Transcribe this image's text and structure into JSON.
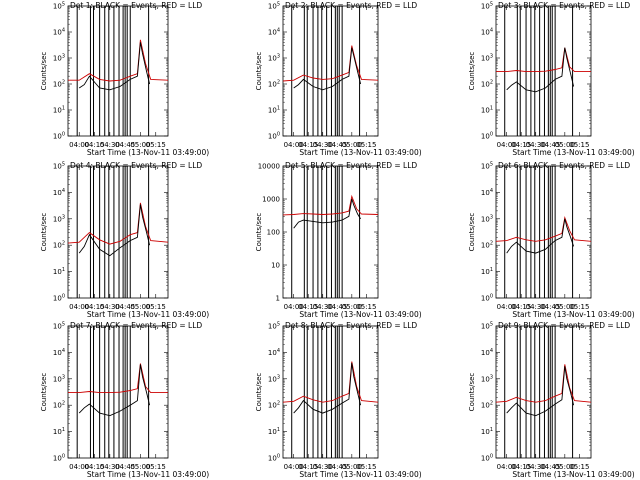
{
  "chart_data": [
    {
      "type": "line",
      "title": "Det 1: BLACK = Events, RED = LLD",
      "xlabel": "Start Time (13-Nov-11 03:49:00)",
      "ylabel": "Counts/sec",
      "scale": "log",
      "ylim": [
        1,
        100000
      ],
      "ytick_labels": [
        "10^0",
        "10^1",
        "10^2",
        "10^3",
        "10^4",
        "10^5"
      ],
      "xlim": [
        "03:49",
        "05:27"
      ],
      "xtick_labels": [
        "04:00",
        "04:15",
        "04:30",
        "04:45",
        "05:00",
        "05:15"
      ],
      "series": [
        {
          "color": "#000000",
          "x": [
            "04:00",
            "04:05",
            "04:10",
            "04:20",
            "04:30",
            "04:40",
            "04:50",
            "04:57",
            "05:00",
            "05:02",
            "05:06",
            "05:09"
          ],
          "values": [
            70,
            95,
            200,
            70,
            60,
            80,
            150,
            200,
            4000,
            1500,
            300,
            100
          ]
        },
        {
          "color": "#cc0000",
          "x": [
            "03:49",
            "04:00",
            "04:10",
            "04:20",
            "04:30",
            "04:40",
            "04:50",
            "04:57",
            "05:00",
            "05:05",
            "05:10",
            "05:27"
          ],
          "values": [
            140,
            140,
            250,
            150,
            130,
            140,
            200,
            250,
            5000,
            600,
            150,
            140
          ]
        }
      ]
    },
    {
      "type": "line",
      "title": "Det 2: BLACK = Events, RED = LLD",
      "xlabel": "Start Time (13-Nov-11 03:49:00)",
      "ylabel": "Counts/sec",
      "scale": "log",
      "ylim": [
        1,
        100000
      ],
      "ytick_labels": [
        "10^0",
        "10^1",
        "10^2",
        "10^3",
        "10^4",
        "10^5"
      ],
      "xlim": [
        "03:49",
        "05:27"
      ],
      "xtick_labels": [
        "04:00",
        "04:15",
        "04:30",
        "04:45",
        "05:00",
        "05:15"
      ],
      "series": [
        {
          "color": "#000000",
          "x": [
            "04:00",
            "04:05",
            "04:10",
            "04:20",
            "04:30",
            "04:40",
            "04:50",
            "04:57",
            "05:00",
            "05:02",
            "05:06",
            "05:09"
          ],
          "values": [
            70,
            95,
            150,
            80,
            60,
            80,
            150,
            200,
            2500,
            1200,
            300,
            100
          ]
        },
        {
          "color": "#cc0000",
          "x": [
            "03:49",
            "04:00",
            "04:10",
            "04:20",
            "04:30",
            "04:40",
            "04:50",
            "04:57",
            "05:00",
            "05:05",
            "05:10",
            "05:27"
          ],
          "values": [
            130,
            140,
            220,
            170,
            150,
            160,
            220,
            280,
            3000,
            500,
            150,
            140
          ]
        }
      ]
    },
    {
      "type": "line",
      "title": "Det 3: BLACK = Events, RED = LLD",
      "xlabel": "Start Time (13-Nov-11 03:49:00)",
      "ylabel": "Counts/sec",
      "scale": "log",
      "ylim": [
        1,
        100000
      ],
      "ytick_labels": [
        "10^0",
        "10^1",
        "10^2",
        "10^3",
        "10^4",
        "10^5"
      ],
      "xlim": [
        "03:49",
        "05:27"
      ],
      "xtick_labels": [
        "04:00",
        "04:15",
        "04:30",
        "04:45",
        "05:00",
        "05:15"
      ],
      "series": [
        {
          "color": "#000000",
          "x": [
            "04:00",
            "04:05",
            "04:10",
            "04:20",
            "04:30",
            "04:40",
            "04:50",
            "04:57",
            "05:00",
            "05:02",
            "05:06",
            "05:09"
          ],
          "values": [
            60,
            90,
            120,
            60,
            50,
            70,
            150,
            200,
            2500,
            1000,
            250,
            80
          ]
        },
        {
          "color": "#cc0000",
          "x": [
            "03:49",
            "04:00",
            "04:10",
            "04:20",
            "04:30",
            "04:40",
            "04:50",
            "04:57",
            "05:00",
            "05:05",
            "05:10",
            "05:27"
          ],
          "values": [
            300,
            300,
            330,
            300,
            300,
            310,
            360,
            420,
            2500,
            450,
            300,
            300
          ]
        }
      ]
    },
    {
      "type": "line",
      "title": "Det 4: BLACK = Events, RED = LLD",
      "xlabel": "Start Time (13-Nov-11 03:49:00)",
      "ylabel": "Counts/sec",
      "scale": "log",
      "ylim": [
        1,
        100000
      ],
      "ytick_labels": [
        "10^0",
        "10^1",
        "10^2",
        "10^3",
        "10^4",
        "10^5"
      ],
      "xlim": [
        "03:49",
        "05:27"
      ],
      "xtick_labels": [
        "04:00",
        "04:15",
        "04:30",
        "04:45",
        "05:00",
        "05:15"
      ],
      "series": [
        {
          "color": "#000000",
          "x": [
            "04:00",
            "04:05",
            "04:10",
            "04:20",
            "04:30",
            "04:40",
            "04:50",
            "04:57",
            "05:00",
            "05:02",
            "05:06",
            "05:09"
          ],
          "values": [
            50,
            90,
            250,
            70,
            40,
            80,
            150,
            200,
            3500,
            1200,
            300,
            100
          ]
        },
        {
          "color": "#cc0000",
          "x": [
            "03:49",
            "04:00",
            "04:10",
            "04:20",
            "04:30",
            "04:40",
            "04:50",
            "04:57",
            "05:00",
            "05:05",
            "05:10",
            "05:27"
          ],
          "values": [
            120,
            130,
            300,
            160,
            110,
            140,
            250,
            300,
            4000,
            500,
            150,
            130
          ]
        }
      ]
    },
    {
      "type": "line",
      "title": "Det 5: BLACK = Events, RED = LLD",
      "xlabel": "Start Time (13-Nov-11 03:49:00)",
      "ylabel": "Counts/sec",
      "scale": "log",
      "ylim": [
        1,
        10000
      ],
      "ytick_labels": [
        "1",
        "10",
        "100",
        "1000",
        "10000"
      ],
      "xlim": [
        "03:49",
        "05:27"
      ],
      "xtick_labels": [
        "04:00",
        "04:15",
        "04:30",
        "04:45",
        "05:00",
        "05:15"
      ],
      "series": [
        {
          "color": "#000000",
          "x": [
            "04:00",
            "04:05",
            "04:10",
            "04:20",
            "04:30",
            "04:40",
            "04:50",
            "04:57",
            "05:00",
            "05:02",
            "05:06",
            "05:09"
          ],
          "values": [
            130,
            200,
            230,
            210,
            190,
            200,
            230,
            300,
            1000,
            650,
            350,
            250
          ]
        },
        {
          "color": "#cc0000",
          "x": [
            "03:49",
            "04:00",
            "04:10",
            "04:20",
            "04:30",
            "04:40",
            "04:50",
            "04:57",
            "05:00",
            "05:05",
            "05:10",
            "05:27"
          ],
          "values": [
            330,
            340,
            360,
            350,
            340,
            350,
            380,
            430,
            1200,
            500,
            350,
            340
          ]
        }
      ]
    },
    {
      "type": "line",
      "title": "Det 6: BLACK = Events, RED = LLD",
      "xlabel": "Start Time (13-Nov-11 03:49:00)",
      "ylabel": "Counts/sec",
      "scale": "log",
      "ylim": [
        1,
        100000
      ],
      "ytick_labels": [
        "10^0",
        "10^1",
        "10^2",
        "10^3",
        "10^4",
        "10^5"
      ],
      "xlim": [
        "03:49",
        "05:27"
      ],
      "xtick_labels": [
        "04:00",
        "04:15",
        "04:30",
        "04:45",
        "05:00",
        "05:15"
      ],
      "series": [
        {
          "color": "#000000",
          "x": [
            "04:00",
            "04:05",
            "04:10",
            "04:20",
            "04:30",
            "04:40",
            "04:50",
            "04:57",
            "05:00",
            "05:02",
            "05:06",
            "05:09"
          ],
          "values": [
            50,
            90,
            130,
            60,
            50,
            70,
            150,
            200,
            1000,
            500,
            200,
            90
          ]
        },
        {
          "color": "#cc0000",
          "x": [
            "03:49",
            "04:00",
            "04:10",
            "04:20",
            "04:30",
            "04:40",
            "04:50",
            "04:57",
            "05:00",
            "05:05",
            "05:10",
            "05:27"
          ],
          "values": [
            140,
            150,
            200,
            160,
            140,
            160,
            220,
            280,
            1100,
            350,
            160,
            140
          ]
        }
      ]
    },
    {
      "type": "line",
      "title": "Det 7: BLACK = Events, RED = LLD",
      "xlabel": "Start Time (13-Nov-11 03:49:00)",
      "ylabel": "Counts/sec",
      "scale": "log",
      "ylim": [
        1,
        100000
      ],
      "ytick_labels": [
        "10^0",
        "10^1",
        "10^2",
        "10^3",
        "10^4",
        "10^5"
      ],
      "xlim": [
        "03:49",
        "05:27"
      ],
      "xtick_labels": [
        "04:00",
        "04:15",
        "04:30",
        "04:45",
        "05:00",
        "05:15"
      ],
      "series": [
        {
          "color": "#000000",
          "x": [
            "04:00",
            "04:05",
            "04:10",
            "04:20",
            "04:30",
            "04:40",
            "04:50",
            "04:57",
            "05:00",
            "05:02",
            "05:06",
            "05:09"
          ],
          "values": [
            50,
            80,
            110,
            50,
            40,
            60,
            100,
            150,
            3500,
            1200,
            300,
            100
          ]
        },
        {
          "color": "#cc0000",
          "x": [
            "03:49",
            "04:00",
            "04:10",
            "04:20",
            "04:30",
            "04:40",
            "04:50",
            "04:57",
            "05:00",
            "05:05",
            "05:10",
            "05:27"
          ],
          "values": [
            300,
            300,
            330,
            300,
            300,
            310,
            360,
            420,
            3800,
            500,
            300,
            300
          ]
        }
      ]
    },
    {
      "type": "line",
      "title": "Det 8: BLACK = Events, RED = LLD",
      "xlabel": "Start Time (13-Nov-11 03:49:00)",
      "ylabel": "Counts/sec",
      "scale": "log",
      "ylim": [
        1,
        100000
      ],
      "ytick_labels": [
        "10^0",
        "10^1",
        "10^2",
        "10^3",
        "10^4",
        "10^5"
      ],
      "xlim": [
        "03:49",
        "05:27"
      ],
      "xtick_labels": [
        "04:00",
        "04:15",
        "04:30",
        "04:45",
        "05:00",
        "05:15"
      ],
      "series": [
        {
          "color": "#000000",
          "x": [
            "04:00",
            "04:05",
            "04:10",
            "04:20",
            "04:30",
            "04:40",
            "04:50",
            "04:57",
            "05:00",
            "05:02",
            "05:06",
            "05:09"
          ],
          "values": [
            50,
            80,
            150,
            70,
            50,
            70,
            120,
            170,
            4000,
            1200,
            300,
            100
          ]
        },
        {
          "color": "#cc0000",
          "x": [
            "03:49",
            "04:00",
            "04:10",
            "04:20",
            "04:30",
            "04:40",
            "04:50",
            "04:57",
            "05:00",
            "05:05",
            "05:10",
            "05:27"
          ],
          "values": [
            130,
            140,
            220,
            160,
            130,
            150,
            220,
            280,
            4500,
            500,
            150,
            130
          ]
        }
      ]
    },
    {
      "type": "line",
      "title": "Det 9: BLACK = Events, RED = LLD",
      "xlabel": "Start Time (13-Nov-11 03:49:00)",
      "ylabel": "Counts/sec",
      "scale": "log",
      "ylim": [
        1,
        100000
      ],
      "ytick_labels": [
        "10^0",
        "10^1",
        "10^2",
        "10^3",
        "10^4",
        "10^5"
      ],
      "xlim": [
        "03:49",
        "05:27"
      ],
      "xtick_labels": [
        "04:00",
        "04:15",
        "04:30",
        "04:45",
        "05:00",
        "05:15"
      ],
      "series": [
        {
          "color": "#000000",
          "x": [
            "04:00",
            "04:05",
            "04:10",
            "04:20",
            "04:30",
            "04:40",
            "04:50",
            "04:57",
            "05:00",
            "05:02",
            "05:06",
            "05:09"
          ],
          "values": [
            50,
            80,
            120,
            50,
            40,
            60,
            110,
            160,
            3000,
            1000,
            300,
            100
          ]
        },
        {
          "color": "#cc0000",
          "x": [
            "03:49",
            "04:00",
            "04:10",
            "04:20",
            "04:30",
            "04:40",
            "04:50",
            "04:57",
            "05:00",
            "05:05",
            "05:10",
            "05:27"
          ],
          "values": [
            130,
            140,
            200,
            150,
            130,
            150,
            220,
            280,
            3500,
            450,
            150,
            130
          ]
        }
      ]
    }
  ],
  "event_markers": [
    "03:58",
    "04:11",
    "04:14",
    "04:20",
    "04:25",
    "04:29",
    "04:34",
    "04:39",
    "04:43",
    "04:45",
    "04:47",
    "04:50",
    "05:08"
  ],
  "colors": {
    "events": "#000000",
    "lld": "#cc0000",
    "background": "#ffffff"
  }
}
